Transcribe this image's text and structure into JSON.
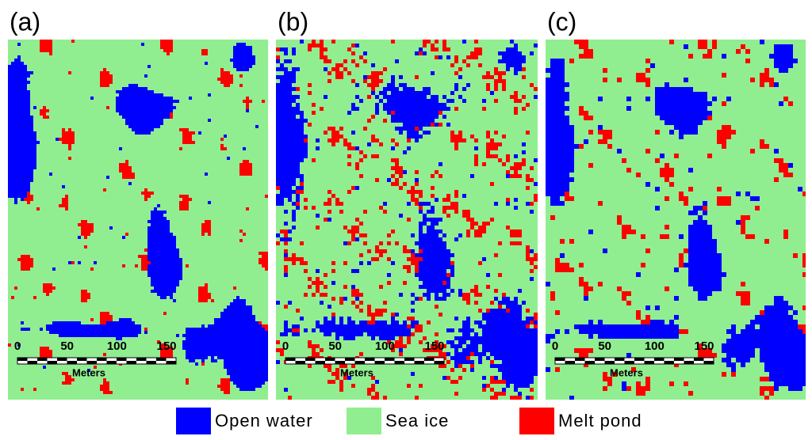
{
  "panels": [
    {
      "label": "(a)"
    },
    {
      "label": "(b)"
    },
    {
      "label": "(c)"
    }
  ],
  "scale_bar": {
    "ticks": [
      "0",
      "50",
      "100",
      "150"
    ],
    "unit": "Meters"
  },
  "legend": [
    {
      "label": "Open water",
      "color": "#0000ff"
    },
    {
      "label": "Sea ice",
      "color": "#90ee90"
    },
    {
      "label": "Melt pond",
      "color": "#ff0000"
    }
  ]
}
